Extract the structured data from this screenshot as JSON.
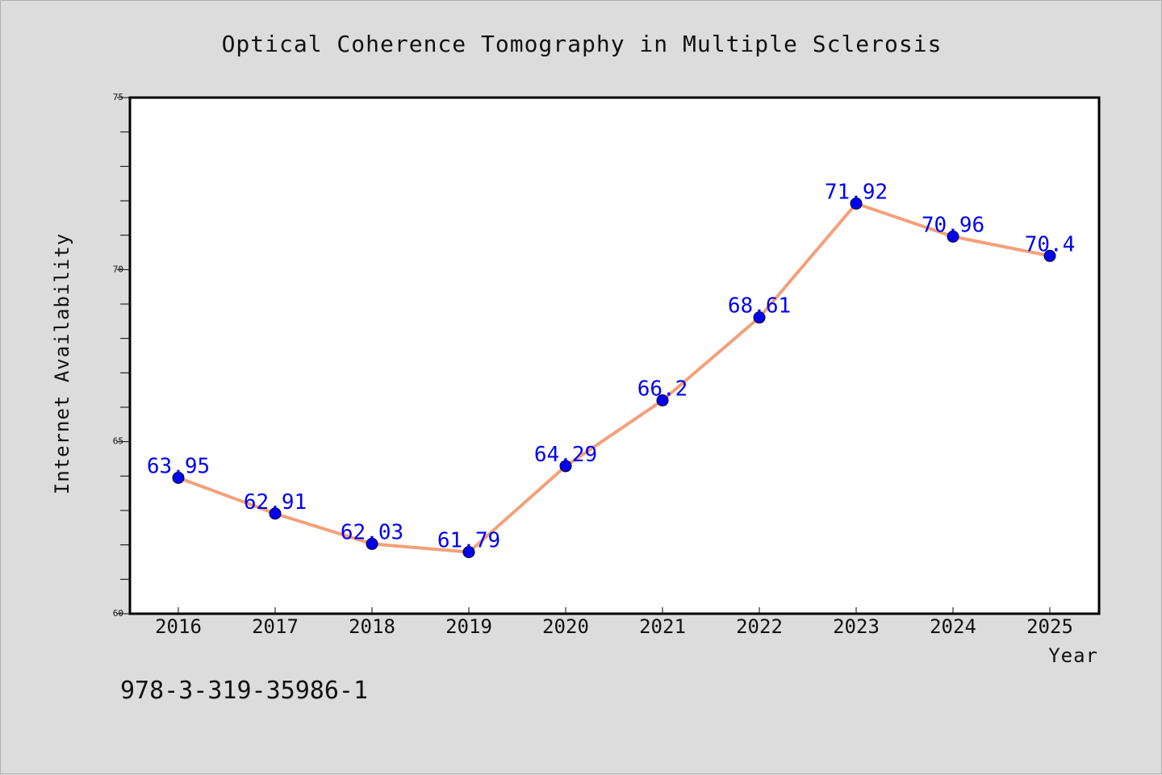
{
  "chart_data": {
    "type": "line",
    "title": "Optical Coherence Tomography in Multiple Sclerosis",
    "xlabel": "Year",
    "ylabel": "Internet Availability",
    "x": [
      "2016",
      "2017",
      "2018",
      "2019",
      "2020",
      "2021",
      "2022",
      "2023",
      "2024",
      "2025"
    ],
    "y": [
      63.95,
      62.91,
      62.03,
      61.79,
      64.29,
      66.2,
      68.61,
      71.92,
      70.96,
      70.4
    ],
    "data_labels": [
      "63.95",
      "62.91",
      "62.03",
      "61.79",
      "64.29",
      "66.2",
      "68.61",
      "71.92",
      "70.96",
      "70.4"
    ],
    "ylim": [
      60,
      75
    ],
    "y_ticks": [
      60,
      65,
      70,
      75
    ],
    "y_tick_labels": [
      "60",
      "65",
      "70",
      "75"
    ],
    "grid": false,
    "legend": "none",
    "line_color": "#f4a07a",
    "marker_color": "#0000ee",
    "label_color": "#0000ee"
  },
  "footer": {
    "text": "978-3-319-35986-1"
  }
}
